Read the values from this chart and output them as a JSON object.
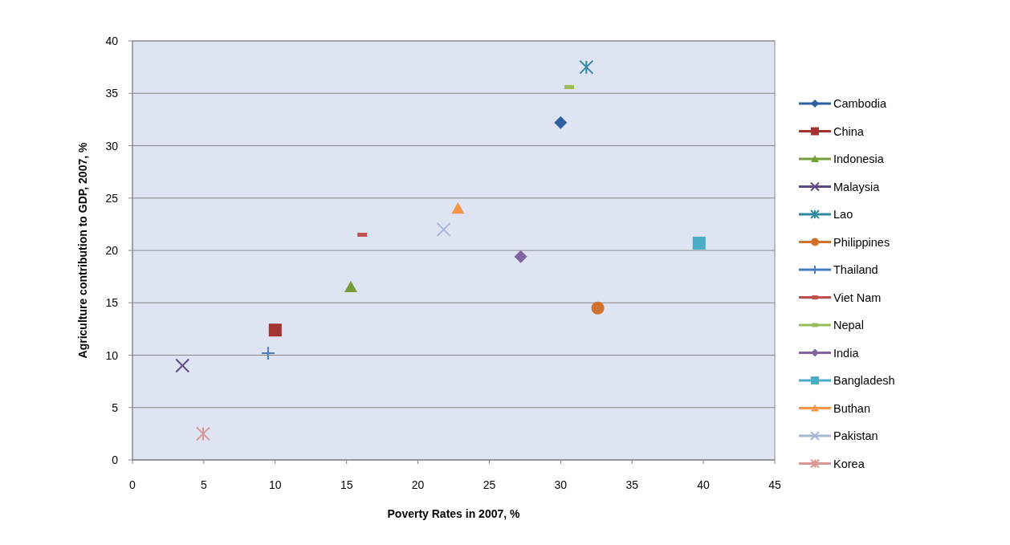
{
  "chart_data": {
    "type": "scatter",
    "xlabel": "Poverty Rates in 2007, %",
    "ylabel": "Agriculture contribution to GDP, 2007, %",
    "xlim": [
      0,
      45
    ],
    "xticks": [
      0,
      5,
      10,
      15,
      20,
      25,
      30,
      35,
      40,
      45
    ],
    "ylim": [
      0,
      40
    ],
    "yticks": [
      0,
      5,
      10,
      15,
      20,
      25,
      30,
      35,
      40
    ],
    "grid": "y",
    "legend": "right",
    "series": [
      {
        "name": "Cambodia",
        "color": "#2e5fa1",
        "marker": "diamond",
        "x": [
          30
        ],
        "values": [
          32.2
        ]
      },
      {
        "name": "China",
        "color": "#a33431",
        "marker": "square",
        "x": [
          10
        ],
        "values": [
          12.4
        ]
      },
      {
        "name": "Indonesia",
        "color": "#779c3a",
        "marker": "triangle",
        "x": [
          15.3
        ],
        "values": [
          16.5
        ]
      },
      {
        "name": "Malaysia",
        "color": "#5f4a86",
        "marker": "x",
        "x": [
          3.5
        ],
        "values": [
          9.0
        ]
      },
      {
        "name": "Lao",
        "color": "#31889f",
        "marker": "cross",
        "x": [
          31.8
        ],
        "values": [
          37.5
        ]
      },
      {
        "name": "Philippines",
        "color": "#d2712a",
        "marker": "circle",
        "x": [
          32.6
        ],
        "values": [
          14.5
        ]
      },
      {
        "name": "Thailand",
        "color": "#4a7ec2",
        "marker": "plus",
        "x": [
          9.5
        ],
        "values": [
          10.2
        ]
      },
      {
        "name": "Viet Nam",
        "color": "#c0504d",
        "x": [
          16.1
        ],
        "values": [
          21.5
        ]
      },
      {
        "name": "Nepal",
        "color": "#9bbb59",
        "x": [
          30.6
        ],
        "values": [
          35.6
        ]
      },
      {
        "name": "India",
        "color": "#8064a2",
        "marker": "diamond",
        "x": [
          27.2
        ],
        "values": [
          19.4
        ]
      },
      {
        "name": "Bangladesh",
        "color": "#4bacc6",
        "marker": "square",
        "x": [
          39.7
        ],
        "values": [
          20.7
        ]
      },
      {
        "name": "Buthan",
        "color": "#f79646",
        "marker": "triangle",
        "x": [
          22.8
        ],
        "values": [
          24.0
        ]
      },
      {
        "name": "Pakistan",
        "color": "#a5b6d8",
        "marker": "x",
        "x": [
          21.8
        ],
        "values": [
          22.0
        ]
      },
      {
        "name": "Korea",
        "color": "#d99694",
        "marker": "cross",
        "x": [
          4.95
        ],
        "values": [
          2.5
        ]
      }
    ]
  }
}
